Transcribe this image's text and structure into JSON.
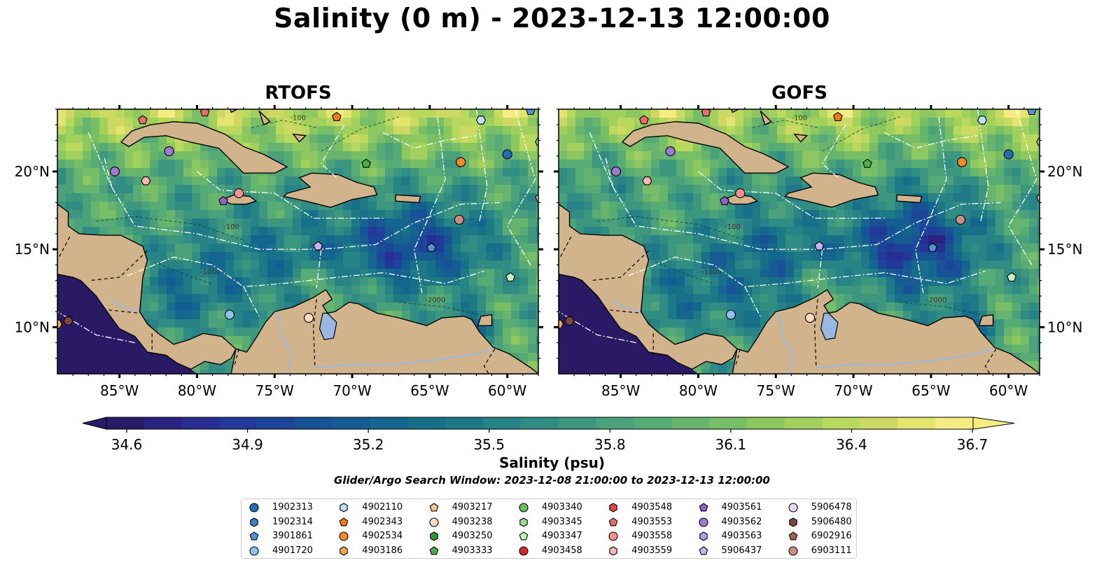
{
  "title": "Salinity (0 m) - 2023-12-13 12:00:00",
  "panels": [
    {
      "id": "rtofs",
      "title": "RTOFS"
    },
    {
      "id": "gofs",
      "title": "GOFS"
    }
  ],
  "map": {
    "lon_range": [
      -89,
      -58
    ],
    "lat_range": [
      7,
      24
    ],
    "lon_ticks": [
      "85°W",
      "80°W",
      "75°W",
      "70°W",
      "65°W",
      "60°W"
    ],
    "lat_ticks": [
      "20°N",
      "15°N",
      "10°N"
    ],
    "land_color": "#d2b48c",
    "pacific_color": "#2a1a66",
    "lake_color": "#9ab8e0",
    "contour_labels": [
      "-100",
      "-1000",
      "-2000"
    ]
  },
  "colorbar": {
    "label": "Salinity (psu)",
    "min": 34.6,
    "max": 36.7,
    "ticks": [
      "34.6",
      "34.9",
      "35.2",
      "35.5",
      "35.8",
      "36.1",
      "36.4",
      "36.7"
    ],
    "colors": [
      "#271b66",
      "#2a237f",
      "#282e91",
      "#22399a",
      "#1c4599",
      "#175196",
      "#155c92",
      "#15668e",
      "#176f8a",
      "#1e7987",
      "#278385",
      "#318d83",
      "#3d977f",
      "#4aa17a",
      "#57ab74",
      "#66b46d",
      "#78be66",
      "#8cc760",
      "#a2d05d",
      "#b8d95e",
      "#ced964",
      "#e4e570",
      "#f5ec84"
    ],
    "extend": "both"
  },
  "search_window": "Glider/Argo Search Window: 2023-12-08 21:00:00 to 2023-12-13 12:00:00",
  "legend": [
    {
      "id": "1902313",
      "marker": "circle",
      "color": "#1f6fb4"
    },
    {
      "id": "1902314",
      "marker": "hexagon",
      "color": "#3d82c4"
    },
    {
      "id": "3901861",
      "marker": "pentagon",
      "color": "#4f95d6"
    },
    {
      "id": "4901720",
      "marker": "circle",
      "color": "#8cc3ec"
    },
    {
      "id": "4902110",
      "marker": "hexagon",
      "color": "#bde1f7"
    },
    {
      "id": "4902343",
      "marker": "pentagon",
      "color": "#f07c10"
    },
    {
      "id": "4902534",
      "marker": "circle",
      "color": "#f4892a"
    },
    {
      "id": "4903186",
      "marker": "hexagon",
      "color": "#f8a755"
    },
    {
      "id": "4903217",
      "marker": "pentagon",
      "color": "#f9c38f"
    },
    {
      "id": "4903238",
      "marker": "circle",
      "color": "#fbdcc0"
    },
    {
      "id": "4903250",
      "marker": "hexagon",
      "color": "#2a9c2a"
    },
    {
      "id": "4903333",
      "marker": "pentagon",
      "color": "#48b048"
    },
    {
      "id": "4903340",
      "marker": "circle",
      "color": "#68bf5e"
    },
    {
      "id": "4903345",
      "marker": "hexagon",
      "color": "#98db8a"
    },
    {
      "id": "4903347",
      "marker": "pentagon",
      "color": "#c6f2bd"
    },
    {
      "id": "4903458",
      "marker": "circle",
      "color": "#d62728"
    },
    {
      "id": "4903548",
      "marker": "hexagon",
      "color": "#e04848"
    },
    {
      "id": "4903553",
      "marker": "pentagon",
      "color": "#ea6c6c"
    },
    {
      "id": "4903558",
      "marker": "circle",
      "color": "#f48f8f"
    },
    {
      "id": "4903559",
      "marker": "hexagon",
      "color": "#fbb7b5"
    },
    {
      "id": "4903561",
      "marker": "pentagon",
      "color": "#8a63c8"
    },
    {
      "id": "4903562",
      "marker": "circle",
      "color": "#9d79d2"
    },
    {
      "id": "4903563",
      "marker": "hexagon",
      "color": "#b49ae0"
    },
    {
      "id": "5906437",
      "marker": "pentagon",
      "color": "#c9b5ec"
    },
    {
      "id": "5906478",
      "marker": "circle",
      "color": "#e6d8f7"
    },
    {
      "id": "5906480",
      "marker": "hexagon",
      "color": "#7b4a3d"
    },
    {
      "id": "6902916",
      "marker": "pentagon",
      "color": "#9c6654"
    },
    {
      "id": "6903111",
      "marker": "circle",
      "color": "#c98f84"
    }
  ],
  "floats": [
    {
      "lon": -79.5,
      "lat": 23.8,
      "id": "4903553"
    },
    {
      "lon": -83.5,
      "lat": 23.3,
      "id": "4903553"
    },
    {
      "lon": -81.8,
      "lat": 21.3,
      "id": "4903562"
    },
    {
      "lon": -85.3,
      "lat": 20.0,
      "id": "4903562"
    },
    {
      "lon": -83.3,
      "lat": 19.4,
      "id": "4903559"
    },
    {
      "lon": -78.3,
      "lat": 18.1,
      "id": "4903561"
    },
    {
      "lon": -77.3,
      "lat": 18.6,
      "id": "4903558"
    },
    {
      "lon": -72.2,
      "lat": 15.2,
      "id": "5906437"
    },
    {
      "lon": -71.0,
      "lat": 23.5,
      "id": "4902343"
    },
    {
      "lon": -69.1,
      "lat": 20.5,
      "id": "4903333"
    },
    {
      "lon": -61.7,
      "lat": 23.3,
      "id": "4902110"
    },
    {
      "lon": -60.0,
      "lat": 21.1,
      "id": "1902313"
    },
    {
      "lon": -58.5,
      "lat": 23.9,
      "id": "3901861"
    },
    {
      "lon": -57.9,
      "lat": 21.9,
      "id": "4903345"
    },
    {
      "lon": -63.0,
      "lat": 20.6,
      "id": "4902534"
    },
    {
      "lon": -63.1,
      "lat": 16.9,
      "id": "6903111"
    },
    {
      "lon": -64.9,
      "lat": 15.1,
      "id": "3901861"
    },
    {
      "lon": -57.9,
      "lat": 18.3,
      "id": "4903217"
    },
    {
      "lon": -59.8,
      "lat": 13.2,
      "id": "4903347"
    },
    {
      "lon": -77.9,
      "lat": 10.8,
      "id": "4901720"
    },
    {
      "lon": -72.8,
      "lat": 10.6,
      "id": "4903238"
    },
    {
      "lon": -89.0,
      "lat": 10.2,
      "id": "4903186"
    },
    {
      "lon": -88.3,
      "lat": 10.4,
      "id": "5906480"
    }
  ]
}
